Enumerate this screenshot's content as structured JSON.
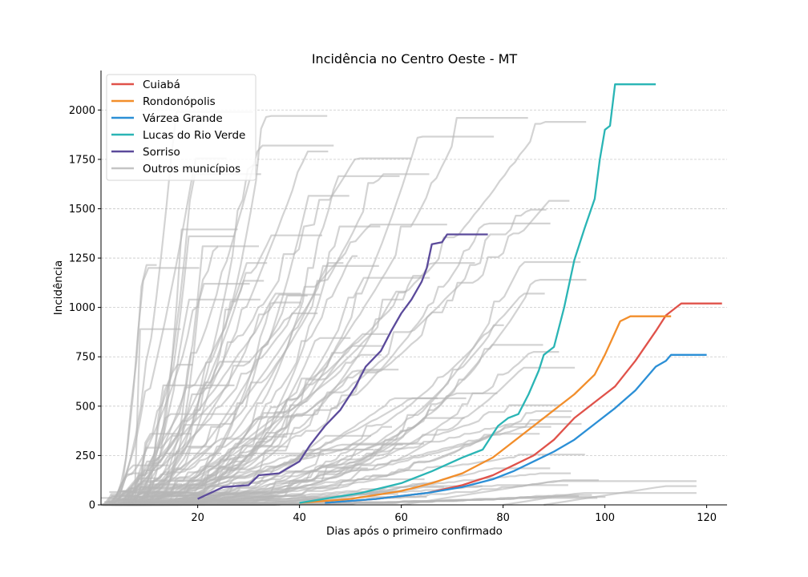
{
  "chart_data": {
    "type": "line",
    "title": "Incidência no Centro Oeste - MT",
    "xlabel": "Dias após o primeiro confirmado",
    "ylabel": "Incidência",
    "xlim": [
      1,
      124
    ],
    "ylim": [
      0,
      2200
    ],
    "x_ticks": [
      20,
      40,
      60,
      80,
      100,
      120
    ],
    "y_ticks": [
      0,
      250,
      500,
      750,
      1000,
      1250,
      1500,
      1750,
      2000
    ],
    "grid": "horizontal dashed",
    "legend_position": "top-left",
    "series": [
      {
        "name": "Cuiabá",
        "color": "#e0524a",
        "points": [
          [
            45,
            10
          ],
          [
            55,
            30
          ],
          [
            65,
            60
          ],
          [
            72,
            100
          ],
          [
            78,
            150
          ],
          [
            82,
            200
          ],
          [
            86,
            250
          ],
          [
            90,
            330
          ],
          [
            94,
            440
          ],
          [
            98,
            520
          ],
          [
            102,
            600
          ],
          [
            106,
            730
          ],
          [
            110,
            880
          ],
          [
            112,
            960
          ],
          [
            114,
            1000
          ],
          [
            115,
            1020
          ],
          [
            123,
            1020
          ]
        ]
      },
      {
        "name": "Rondonópolis",
        "color": "#f28e2b",
        "points": [
          [
            40,
            10
          ],
          [
            50,
            30
          ],
          [
            60,
            70
          ],
          [
            66,
            110
          ],
          [
            72,
            160
          ],
          [
            78,
            240
          ],
          [
            82,
            320
          ],
          [
            86,
            400
          ],
          [
            90,
            480
          ],
          [
            94,
            560
          ],
          [
            98,
            660
          ],
          [
            100,
            760
          ],
          [
            103,
            930
          ],
          [
            105,
            955
          ],
          [
            113,
            955
          ]
        ]
      },
      {
        "name": "Várzea Grande",
        "color": "#2b8fd6",
        "points": [
          [
            45,
            10
          ],
          [
            55,
            30
          ],
          [
            65,
            60
          ],
          [
            72,
            90
          ],
          [
            78,
            130
          ],
          [
            82,
            170
          ],
          [
            86,
            220
          ],
          [
            90,
            270
          ],
          [
            94,
            330
          ],
          [
            98,
            410
          ],
          [
            102,
            490
          ],
          [
            106,
            580
          ],
          [
            110,
            700
          ],
          [
            112,
            730
          ],
          [
            113,
            760
          ],
          [
            120,
            760
          ]
        ]
      },
      {
        "name": "Lucas do Rio Verde",
        "color": "#2ab5b5",
        "points": [
          [
            40,
            10
          ],
          [
            52,
            60
          ],
          [
            60,
            110
          ],
          [
            66,
            170
          ],
          [
            72,
            240
          ],
          [
            76,
            280
          ],
          [
            79,
            400
          ],
          [
            81,
            440
          ],
          [
            83,
            460
          ],
          [
            85,
            560
          ],
          [
            87,
            680
          ],
          [
            88,
            760
          ],
          [
            90,
            800
          ],
          [
            92,
            1000
          ],
          [
            94,
            1240
          ],
          [
            96,
            1400
          ],
          [
            98,
            1550
          ],
          [
            99,
            1750
          ],
          [
            100,
            1900
          ],
          [
            101,
            1920
          ],
          [
            102,
            2130
          ],
          [
            110,
            2130
          ]
        ]
      },
      {
        "name": "Sorriso",
        "color": "#5b4a9b",
        "points": [
          [
            20,
            30
          ],
          [
            25,
            90
          ],
          [
            30,
            100
          ],
          [
            32,
            150
          ],
          [
            36,
            160
          ],
          [
            40,
            220
          ],
          [
            42,
            300
          ],
          [
            45,
            400
          ],
          [
            48,
            480
          ],
          [
            51,
            600
          ],
          [
            53,
            700
          ],
          [
            56,
            780
          ],
          [
            58,
            880
          ],
          [
            60,
            970
          ],
          [
            62,
            1040
          ],
          [
            64,
            1130
          ],
          [
            65,
            1200
          ],
          [
            66,
            1320
          ],
          [
            68,
            1330
          ],
          [
            69,
            1370
          ],
          [
            77,
            1370
          ]
        ]
      },
      {
        "name": "Outros municípios",
        "color": "#b5b5b5"
      }
    ]
  }
}
